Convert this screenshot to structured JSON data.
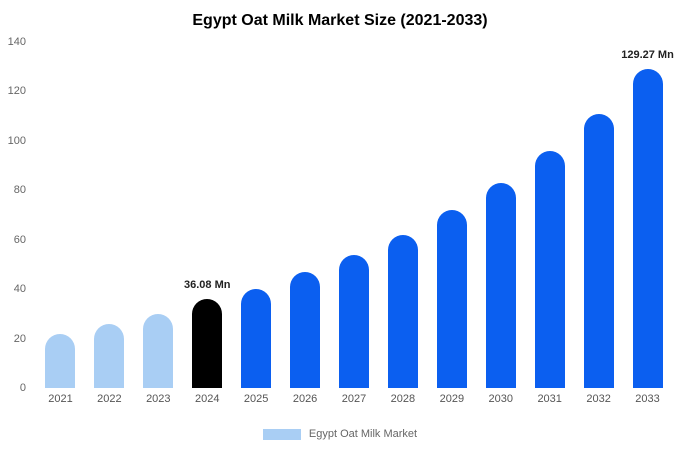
{
  "chart_data": {
    "type": "bar",
    "title": "Egypt Oat Milk Market Size (2021-2033)",
    "categories": [
      "2021",
      "2022",
      "2023",
      "2024",
      "2025",
      "2026",
      "2027",
      "2028",
      "2029",
      "2030",
      "2031",
      "2032",
      "2033"
    ],
    "values": [
      22,
      26,
      30,
      36.08,
      40,
      47,
      54,
      62,
      72,
      83,
      96,
      111,
      129.27
    ],
    "colors": [
      "#a9cef4",
      "#a9cef4",
      "#a9cef4",
      "#000000",
      "#0b5ff0",
      "#0b5ff0",
      "#0b5ff0",
      "#0b5ff0",
      "#0b5ff0",
      "#0b5ff0",
      "#0b5ff0",
      "#0b5ff0",
      "#0b5ff0"
    ],
    "xlabel": "",
    "ylabel": "",
    "ylim": [
      0,
      140
    ],
    "yticks": [
      0,
      20,
      40,
      60,
      80,
      100,
      120,
      140
    ],
    "grid": false,
    "annotations": [
      {
        "category": "2024",
        "text": "36.08 Mn"
      },
      {
        "category": "2033",
        "text": "129.27 Mn"
      }
    ],
    "legend": {
      "position": "bottom",
      "label": "Egypt Oat Milk Market",
      "swatch_color": "#a9cef4"
    }
  }
}
